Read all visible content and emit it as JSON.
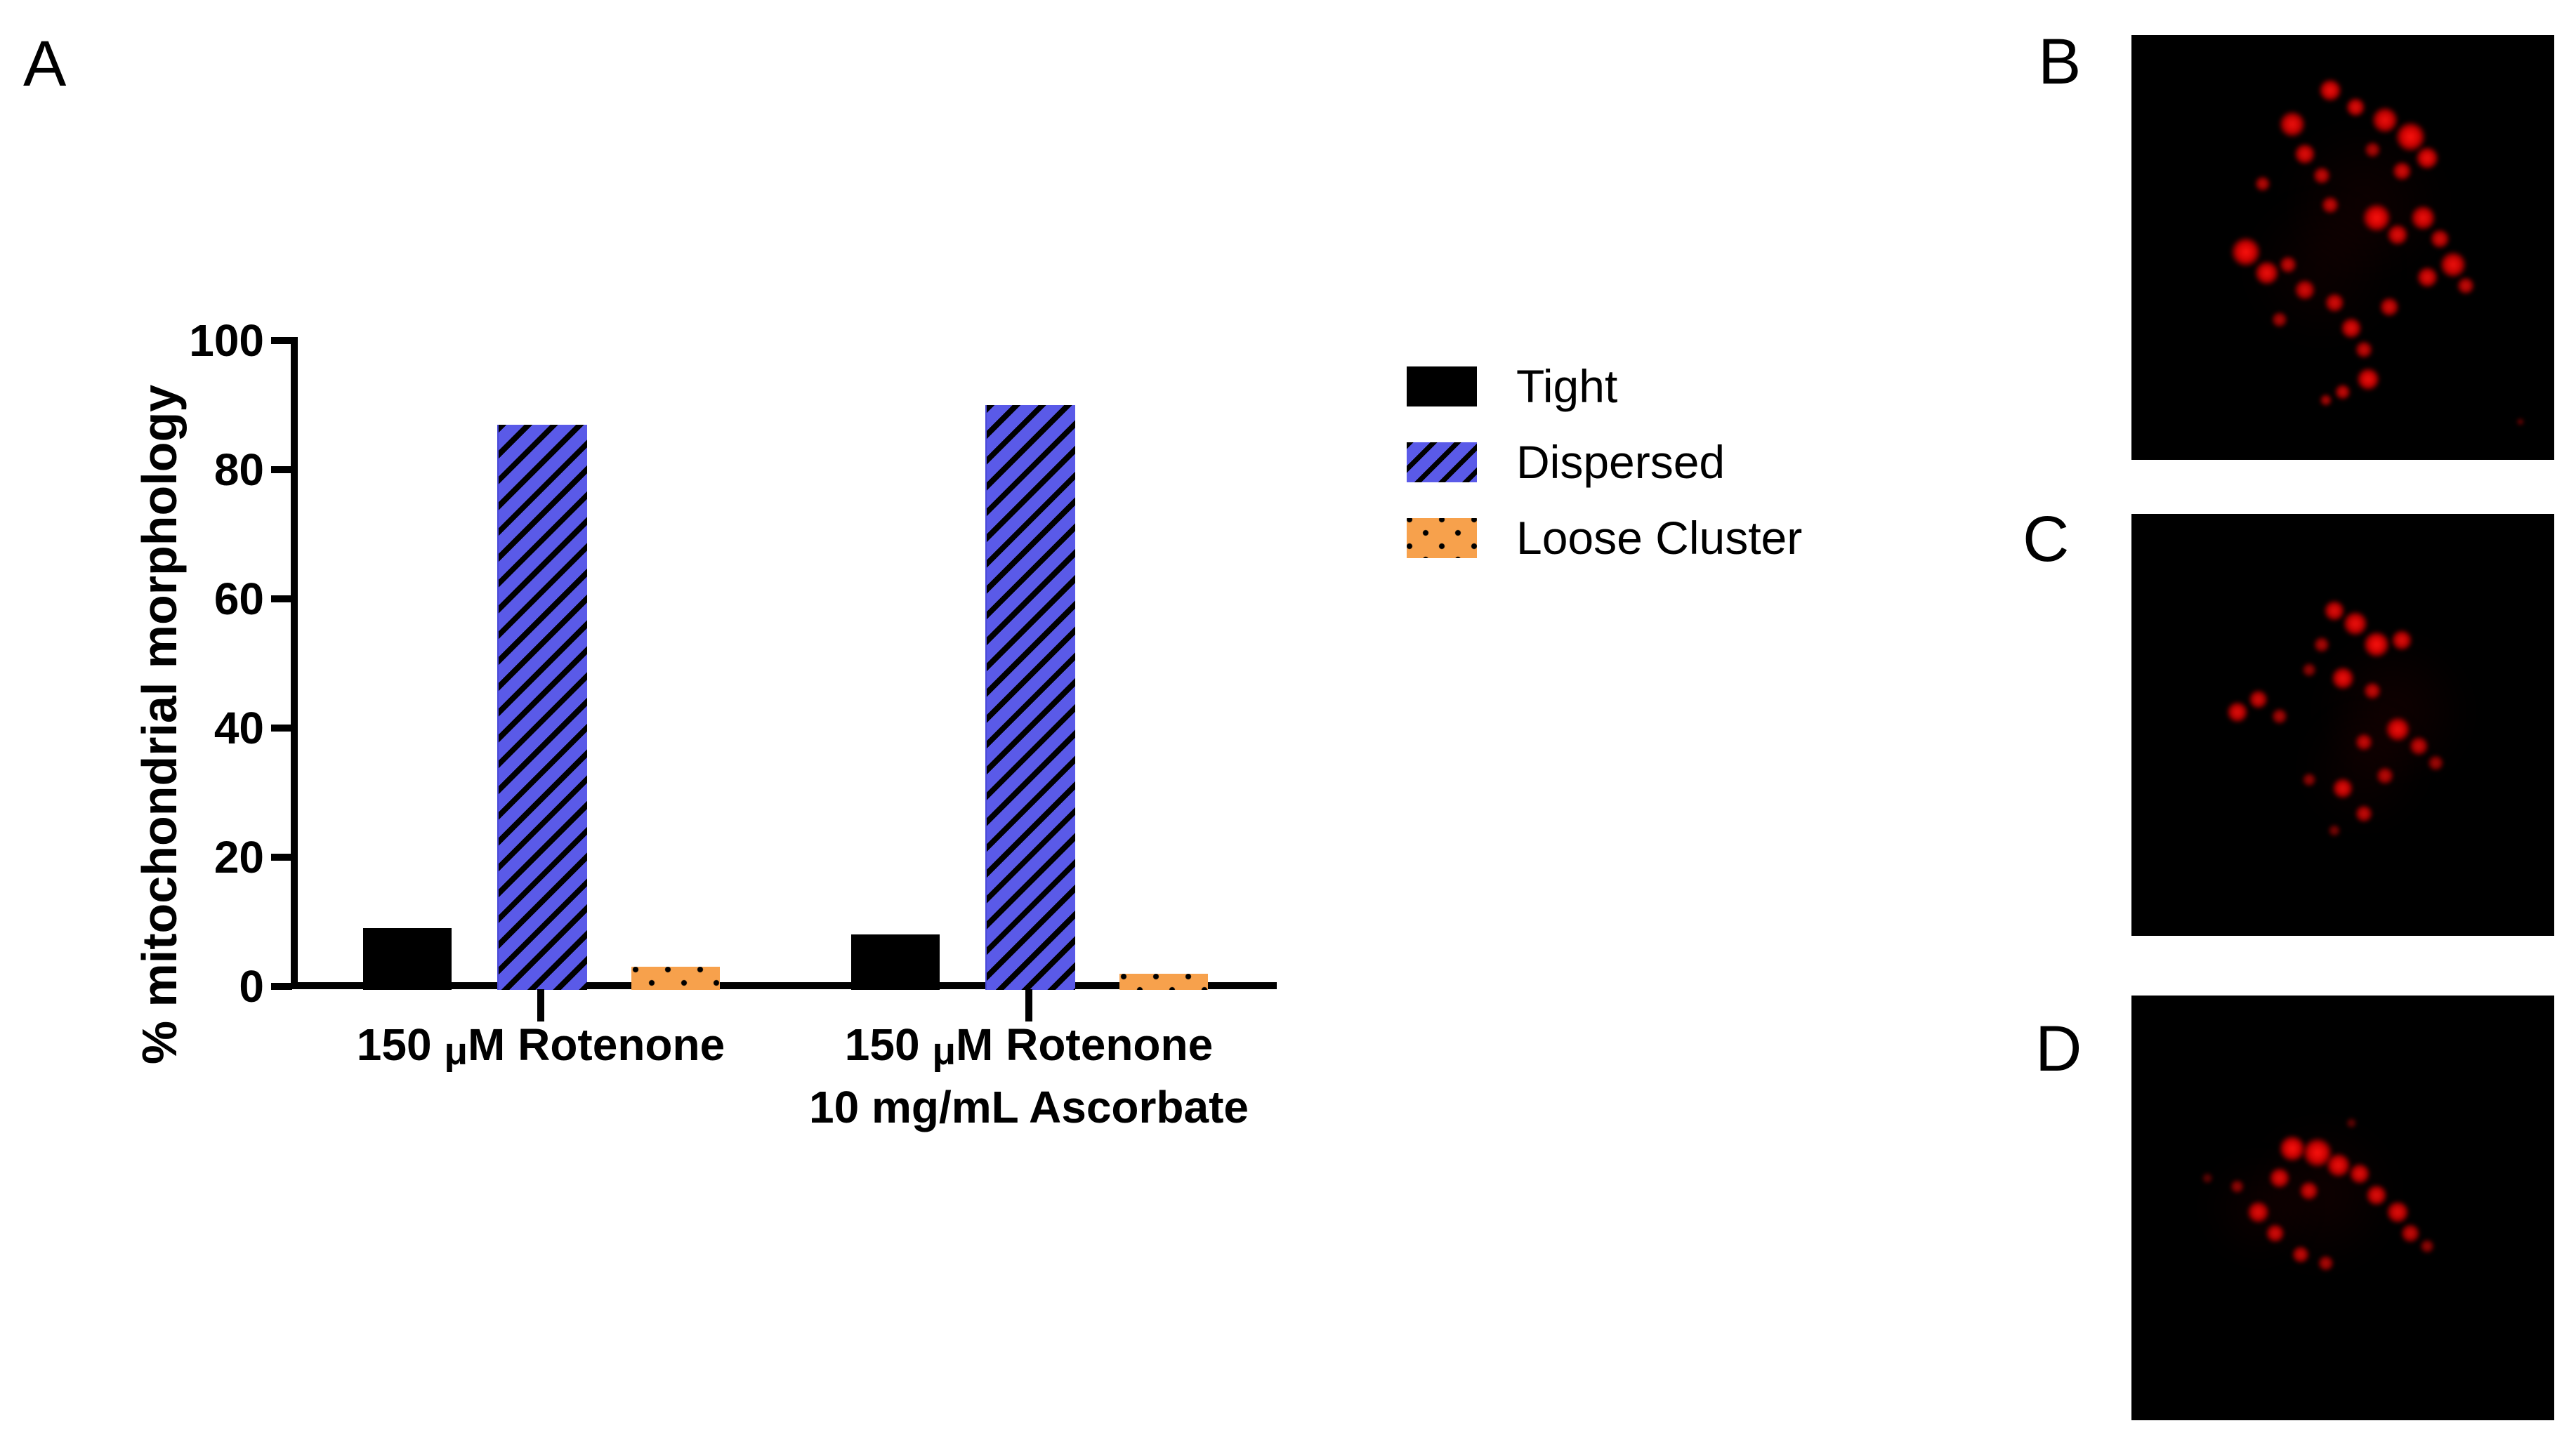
{
  "figure": {
    "panel_a_label": "A",
    "panel_b_label": "B",
    "panel_c_label": "C",
    "panel_d_label": "D"
  },
  "chart_data": {
    "type": "bar",
    "title": "",
    "xlabel": "",
    "ylabel": "% mitochondrial morphology",
    "ylim": [
      0,
      100
    ],
    "yticks": [
      0,
      20,
      40,
      60,
      80,
      100
    ],
    "grid": false,
    "legend_position": "right-of-plot",
    "categories": [
      [
        "150 μM Rotenone"
      ],
      [
        "150 μM Rotenone",
        "10 mg/mL Ascorbate"
      ]
    ],
    "series": [
      {
        "name": "Tight",
        "pattern": "solid",
        "color": "#000000",
        "values": [
          9,
          8
        ]
      },
      {
        "name": "Dispersed",
        "pattern": "hatch",
        "color": "#5a5ae8",
        "values": [
          87,
          90
        ]
      },
      {
        "name": "Loose Cluster",
        "pattern": "dots",
        "color": "#f7a14c",
        "values": [
          3,
          2
        ]
      }
    ]
  },
  "micrographs": {
    "spot_color": "255,20,15",
    "haze_color": "120,0,0",
    "panels": [
      {
        "label": "B",
        "spots": [
          [
            47,
            13,
            13,
            0.95
          ],
          [
            53,
            17,
            11,
            0.9
          ],
          [
            60,
            20,
            15,
            0.95
          ],
          [
            66,
            24,
            17,
            1
          ],
          [
            70,
            29,
            13,
            0.95
          ],
          [
            64,
            32,
            11,
            0.85
          ],
          [
            57,
            27,
            9,
            0.7
          ],
          [
            38,
            21,
            15,
            0.95
          ],
          [
            41,
            28,
            12,
            0.9
          ],
          [
            45,
            33,
            10,
            0.8
          ],
          [
            31,
            35,
            9,
            0.75
          ],
          [
            47,
            40,
            10,
            0.8
          ],
          [
            58,
            43,
            16,
            1
          ],
          [
            63,
            47,
            12,
            0.9
          ],
          [
            69,
            43,
            14,
            0.95
          ],
          [
            73,
            48,
            11,
            0.85
          ],
          [
            76,
            54,
            15,
            0.95
          ],
          [
            70,
            57,
            12,
            0.9
          ],
          [
            79,
            59,
            10,
            0.8
          ],
          [
            27,
            51,
            17,
            1
          ],
          [
            32,
            56,
            14,
            0.95
          ],
          [
            37,
            54,
            10,
            0.8
          ],
          [
            41,
            60,
            12,
            0.85
          ],
          [
            48,
            63,
            11,
            0.85
          ],
          [
            35,
            67,
            9,
            0.7
          ],
          [
            52,
            69,
            12,
            0.9
          ],
          [
            61,
            64,
            11,
            0.85
          ],
          [
            55,
            74,
            10,
            0.8
          ],
          [
            56,
            81,
            13,
            0.95
          ],
          [
            50,
            84,
            9,
            0.8
          ],
          [
            46,
            86,
            7,
            0.7
          ],
          [
            92,
            91,
            4,
            0.5
          ]
        ],
        "haze": [
          [
            55,
            40,
            60,
            0.12
          ],
          [
            45,
            55,
            55,
            0.1
          ]
        ]
      },
      {
        "label": "C",
        "spots": [
          [
            48,
            23,
            12,
            0.9
          ],
          [
            53,
            26,
            14,
            0.95
          ],
          [
            58,
            31,
            15,
            1
          ],
          [
            64,
            30,
            12,
            0.9
          ],
          [
            45,
            31,
            9,
            0.7
          ],
          [
            42,
            37,
            8,
            0.6
          ],
          [
            50,
            39,
            13,
            0.95
          ],
          [
            57,
            42,
            10,
            0.8
          ],
          [
            30,
            44,
            11,
            0.85
          ],
          [
            25,
            47,
            12,
            0.9
          ],
          [
            35,
            48,
            9,
            0.7
          ],
          [
            55,
            54,
            10,
            0.8
          ],
          [
            63,
            51,
            14,
            0.95
          ],
          [
            68,
            55,
            11,
            0.8
          ],
          [
            72,
            59,
            9,
            0.65
          ],
          [
            60,
            62,
            10,
            0.75
          ],
          [
            50,
            65,
            12,
            0.9
          ],
          [
            42,
            63,
            8,
            0.6
          ],
          [
            55,
            71,
            10,
            0.8
          ],
          [
            48,
            75,
            7,
            0.5
          ]
        ],
        "haze": [
          [
            62,
            47,
            55,
            0.14
          ],
          [
            55,
            60,
            45,
            0.1
          ]
        ]
      },
      {
        "label": "D",
        "spots": [
          [
            38,
            36,
            15,
            1
          ],
          [
            44,
            37,
            17,
            1
          ],
          [
            49,
            40,
            14,
            0.95
          ],
          [
            54,
            42,
            12,
            0.9
          ],
          [
            35,
            43,
            12,
            0.9
          ],
          [
            42,
            46,
            11,
            0.85
          ],
          [
            58,
            47,
            12,
            0.9
          ],
          [
            63,
            51,
            13,
            0.9
          ],
          [
            66,
            56,
            11,
            0.8
          ],
          [
            30,
            51,
            13,
            0.9
          ],
          [
            34,
            56,
            11,
            0.85
          ],
          [
            40,
            61,
            10,
            0.8
          ],
          [
            46,
            63,
            9,
            0.7
          ],
          [
            25,
            45,
            8,
            0.6
          ],
          [
            18,
            43,
            6,
            0.4
          ],
          [
            70,
            59,
            8,
            0.6
          ],
          [
            52,
            30,
            6,
            0.4
          ]
        ],
        "haze": [
          [
            45,
            47,
            55,
            0.13
          ],
          [
            30,
            50,
            40,
            0.1
          ]
        ]
      }
    ]
  }
}
